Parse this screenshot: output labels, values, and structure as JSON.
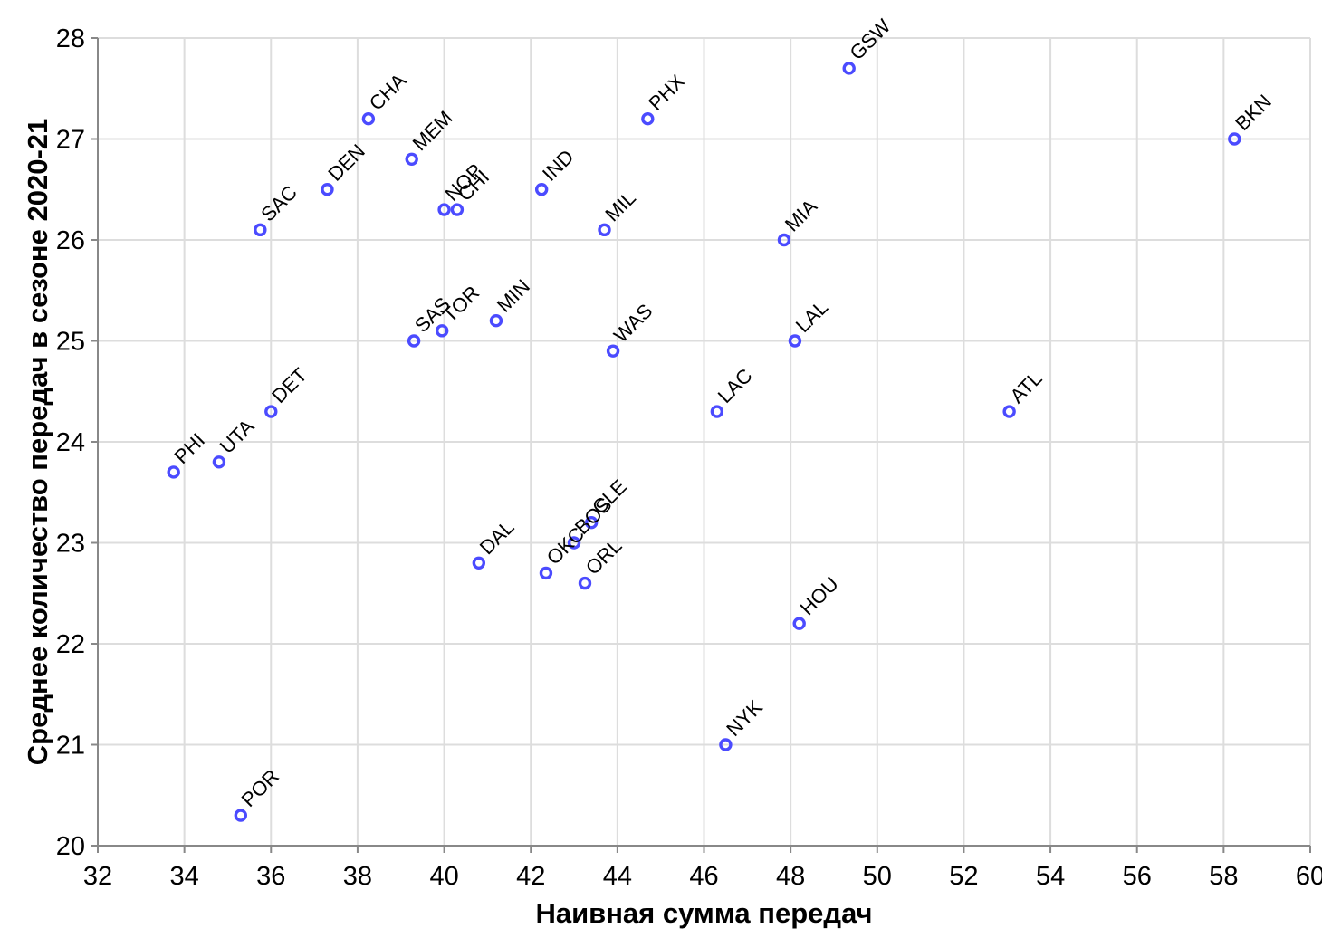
{
  "chart_data": {
    "type": "scatter",
    "xlabel": "Наивная сумма передач",
    "ylabel": "Среднее количество передач в сезоне 2020-21",
    "xlim": [
      32,
      60
    ],
    "ylim": [
      20,
      28
    ],
    "x_ticks": [
      "32",
      "34",
      "36",
      "38",
      "40",
      "42",
      "44",
      "46",
      "48",
      "50",
      "52",
      "54",
      "56",
      "58",
      "60"
    ],
    "y_ticks": [
      "20",
      "21",
      "22",
      "23",
      "24",
      "25",
      "26",
      "27",
      "28"
    ],
    "grid": true,
    "marker": "open-circle",
    "point_color": "#4b4bff",
    "points": [
      {
        "label": "GSW",
        "x": 49.35,
        "y": 27.7
      },
      {
        "label": "CHA",
        "x": 38.25,
        "y": 27.2
      },
      {
        "label": "PHX",
        "x": 44.7,
        "y": 27.2
      },
      {
        "label": "BKN",
        "x": 58.25,
        "y": 27.0
      },
      {
        "label": "MEM",
        "x": 39.25,
        "y": 26.8
      },
      {
        "label": "DEN",
        "x": 37.3,
        "y": 26.5
      },
      {
        "label": "IND",
        "x": 42.25,
        "y": 26.5
      },
      {
        "label": "NOP",
        "x": 40.0,
        "y": 26.3
      },
      {
        "label": "CHI",
        "x": 40.3,
        "y": 26.3
      },
      {
        "label": "SAC",
        "x": 35.75,
        "y": 26.1
      },
      {
        "label": "MIL",
        "x": 43.7,
        "y": 26.1
      },
      {
        "label": "MIA",
        "x": 47.85,
        "y": 26.0
      },
      {
        "label": "MIN",
        "x": 41.2,
        "y": 25.2
      },
      {
        "label": "TOR",
        "x": 39.95,
        "y": 25.1
      },
      {
        "label": "SAS",
        "x": 39.3,
        "y": 25.0
      },
      {
        "label": "LAL",
        "x": 48.1,
        "y": 25.0
      },
      {
        "label": "WAS",
        "x": 43.9,
        "y": 24.9
      },
      {
        "label": "DET",
        "x": 36.0,
        "y": 24.3
      },
      {
        "label": "LAC",
        "x": 46.3,
        "y": 24.3
      },
      {
        "label": "ATL",
        "x": 53.05,
        "y": 24.3
      },
      {
        "label": "UTA",
        "x": 34.8,
        "y": 23.8
      },
      {
        "label": "PHI",
        "x": 33.75,
        "y": 23.7
      },
      {
        "label": "CLE",
        "x": 43.4,
        "y": 23.2
      },
      {
        "label": "BOS",
        "x": 43.0,
        "y": 23.0
      },
      {
        "label": "DAL",
        "x": 40.8,
        "y": 22.8
      },
      {
        "label": "OKC",
        "x": 42.35,
        "y": 22.7
      },
      {
        "label": "ORL",
        "x": 43.25,
        "y": 22.6
      },
      {
        "label": "HOU",
        "x": 48.2,
        "y": 22.2
      },
      {
        "label": "NYK",
        "x": 46.5,
        "y": 21.0
      },
      {
        "label": "POR",
        "x": 35.3,
        "y": 20.3
      }
    ]
  }
}
